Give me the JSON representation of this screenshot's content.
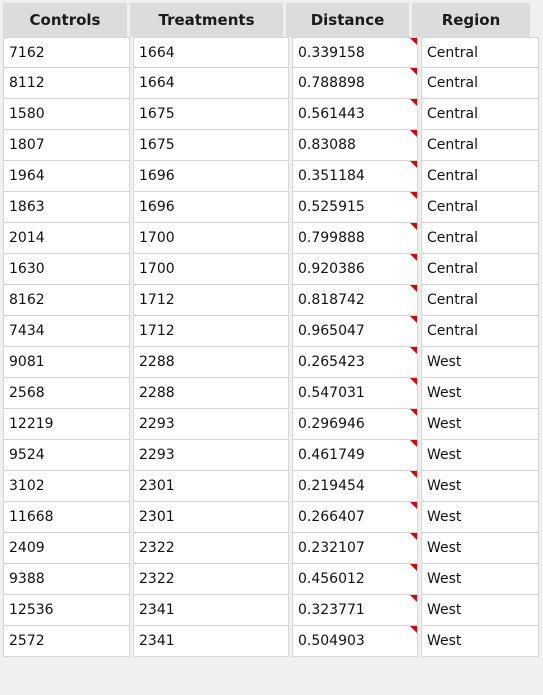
{
  "table": {
    "columns": [
      "Controls",
      "Treatments",
      "Distance",
      "Region"
    ],
    "rows": [
      [
        "7162",
        "1664",
        "0.339158",
        "Central"
      ],
      [
        "8112",
        "1664",
        "0.788898",
        "Central"
      ],
      [
        "1580",
        "1675",
        "0.561443",
        "Central"
      ],
      [
        "1807",
        "1675",
        "0.83088",
        "Central"
      ],
      [
        "1964",
        "1696",
        "0.351184",
        "Central"
      ],
      [
        "1863",
        "1696",
        "0.525915",
        "Central"
      ],
      [
        "2014",
        "1700",
        "0.799888",
        "Central"
      ],
      [
        "1630",
        "1700",
        "0.920386",
        "Central"
      ],
      [
        "8162",
        "1712",
        "0.818742",
        "Central"
      ],
      [
        "7434",
        "1712",
        "0.965047",
        "Central"
      ],
      [
        "9081",
        "2288",
        "0.265423",
        "West"
      ],
      [
        "2568",
        "2288",
        "0.547031",
        "West"
      ],
      [
        "12219",
        "2293",
        "0.296946",
        "West"
      ],
      [
        "9524",
        "2293",
        "0.461749",
        "West"
      ],
      [
        "3102",
        "2301",
        "0.219454",
        "West"
      ],
      [
        "11668",
        "2301",
        "0.266407",
        "West"
      ],
      [
        "2409",
        "2322",
        "0.232107",
        "West"
      ],
      [
        "9388",
        "2322",
        "0.456012",
        "West"
      ],
      [
        "12536",
        "2341",
        "0.323771",
        "West"
      ],
      [
        "2572",
        "2341",
        "0.504903",
        "West"
      ]
    ],
    "note_indicator_color": "#e00000"
  }
}
